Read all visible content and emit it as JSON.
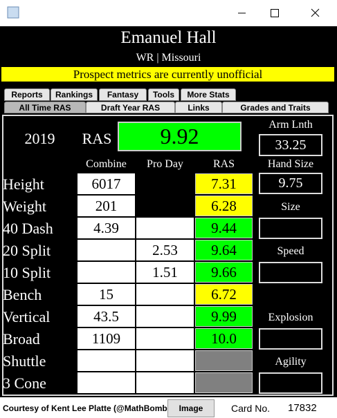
{
  "header": {
    "name": "Emanuel Hall",
    "position_school": "WR | Missouri",
    "notice": "Prospect metrics are currently unofficial"
  },
  "tabs": {
    "row1": [
      "Reports",
      "Rankings",
      "Fantasy",
      "Tools",
      "More Stats"
    ],
    "row2": [
      "All Time RAS",
      "Draft Year RAS",
      "Links",
      "Grades and Traits"
    ]
  },
  "summary": {
    "year": "2019",
    "ras_label": "RAS",
    "ras": "9.92",
    "arm_length_label": "Arm Lnth",
    "arm_length": "33.25",
    "hand_size_label": "Hand Size",
    "hand_size": "9.75"
  },
  "table": {
    "columns": [
      "Combine",
      "Pro Day",
      "RAS"
    ],
    "rows": [
      {
        "label": "Height",
        "combine": "6017",
        "ras": "7.31",
        "ras_color": "#ffff00"
      },
      {
        "label": "Weight",
        "combine": "201",
        "ras": "6.28",
        "ras_color": "#ffff00"
      },
      {
        "label": "40 Dash",
        "combine": "4.39",
        "pro_day": null,
        "ras": "9.44",
        "ras_color": "#00ff00"
      },
      {
        "label": "20 Split",
        "combine": null,
        "pro_day": "2.53",
        "ras": "9.64",
        "ras_color": "#00ff00"
      },
      {
        "label": "10 Split",
        "combine": null,
        "pro_day": "1.51",
        "ras": "9.66",
        "ras_color": "#00ff00"
      },
      {
        "label": "Bench",
        "combine": "15",
        "pro_day": null,
        "ras": "6.72",
        "ras_color": "#ffff00"
      },
      {
        "label": "Vertical",
        "combine": "43.5",
        "pro_day": null,
        "ras": "9.99",
        "ras_color": "#00ff00"
      },
      {
        "label": "Broad",
        "combine": "1109",
        "pro_day": null,
        "ras": "10.0",
        "ras_color": "#00ff00"
      },
      {
        "label": "Shuttle",
        "combine": null,
        "pro_day": null,
        "ras": null,
        "ras_color": "#808080"
      },
      {
        "label": "3 Cone",
        "combine": null,
        "pro_day": null,
        "ras": null,
        "ras_color": "#808080"
      }
    ]
  },
  "sections": [
    "Size",
    "Speed",
    "Explosion",
    "Agility"
  ],
  "footer": {
    "credit": "Courtesy of Kent Lee Platte (@MathBomb)",
    "image_button": "Image",
    "card_label": "Card No.",
    "card_number": "17832"
  }
}
